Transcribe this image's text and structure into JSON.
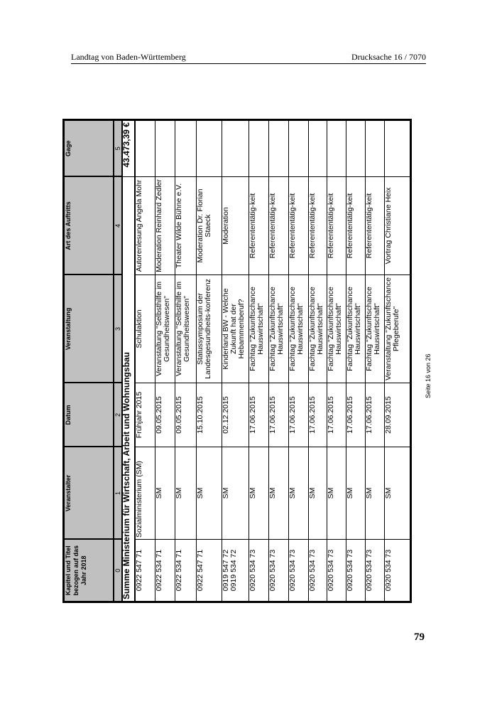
{
  "header": {
    "left": "Landtag von Baden-Württemberg",
    "right": "Drucksache 16 / 7070"
  },
  "footer": {
    "page_number": "79",
    "seite": "Seite 16 von 26"
  },
  "table": {
    "columns": [
      "Kapitel und Titel bezogen auf das Jahr 2018",
      "Veranstalter",
      "Datum",
      "Veranstaltung",
      "Art des Auftritts",
      "Gage"
    ],
    "numbers": [
      "0",
      "1",
      "2",
      "3",
      "4",
      "5"
    ],
    "summary": {
      "label": "Summe Ministerium für Wirtschaft, Arbeit und Wohnungsbau",
      "amount": "43.473,39 €"
    },
    "rows": [
      [
        "0922 547 71",
        "Sozialministerium (SM)",
        "Frühjahr 2015",
        "Schulaktion",
        "Autorenlesung Angela Mohr",
        ""
      ],
      [
        "0922 534 71",
        "SM",
        "09.05.2015",
        "Veranstaltung \"Selbsthilfe im Gesundheitswesen\"",
        "Moderation Reinhard Zedler",
        ""
      ],
      [
        "0922 534 71",
        "SM",
        "09.05.2015",
        "Veranstaltung \"Selbsthilfe im Gesundheitswesen\"",
        "Theater Wilde Bühne e.V.",
        ""
      ],
      [
        "0922 547 71",
        "SM",
        "15.10.2015",
        "Statussymposium der Landesgesundheits-konferenz",
        "Moderation Dr. Florian Staeck",
        ""
      ],
      [
        "0919 547 72 0919 534 72",
        "SM",
        "02.12.2015",
        "Kinderland BW - Welche Zukunft hat der Hebammenberuf?",
        "Moderation",
        ""
      ],
      [
        "0920 534 73",
        "SM",
        "17.06.2015",
        "Fachtag \"Zukunftschance Hauswirtschaft\"",
        "Referententätig-keit",
        ""
      ],
      [
        "0920 534 73",
        "SM",
        "17.06.2015",
        "Fachtag \"Zukunftschance Hauswirtschaft\"",
        "Referententätig-keit",
        ""
      ],
      [
        "0920 534 73",
        "SM",
        "17.06.2015",
        "Fachtag \"Zukunftschance Hauswirtschaft\"",
        "Referententätig-keit",
        ""
      ],
      [
        "0920 534 73",
        "SM",
        "17.06.2015",
        "Fachtag \"Zukunftschance Hauswirtschaft\"",
        "Referententätig-keit",
        ""
      ],
      [
        "0920 534 73",
        "SM",
        "17.06.2015",
        "Fachtag \"Zukunftschance Hauswirtschaft\"",
        "Referententätig-keit",
        ""
      ],
      [
        "0920 534 73",
        "SM",
        "17.06.2015",
        "Fachtag \"Zukunftschance Hauswirtschaft\"",
        "Referententätig-keit",
        ""
      ],
      [
        "0920 534 73",
        "SM",
        "17.06.2015",
        "Fachtag \"Zukunftschance Hauswirtschaft\"",
        "Referententätig-keit",
        ""
      ],
      [
        "0920 534 73",
        "SM",
        "28.09.2015",
        "Veranstaltung \"Zukunftschance Pflegeberufe\"",
        "Vortrag Christiane Heix",
        ""
      ]
    ]
  }
}
